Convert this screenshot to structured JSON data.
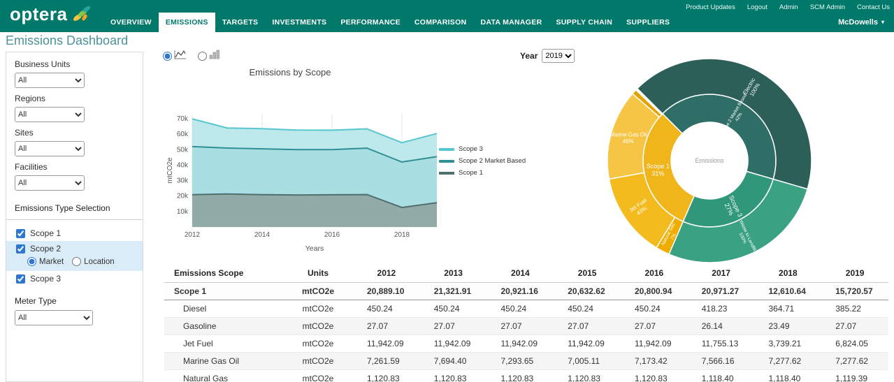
{
  "header": {
    "brand": "optera",
    "brand_color": "#00796b",
    "utility_links": [
      "Product Updates",
      "Logout",
      "Admin",
      "SCM Admin",
      "Contact Us"
    ],
    "nav": [
      "OVERVIEW",
      "EMISSIONS",
      "TARGETS",
      "INVESTMENTS",
      "PERFORMANCE",
      "COMPARISON",
      "DATA MANAGER",
      "SUPPLY CHAIN",
      "SUPPLIERS"
    ],
    "active_nav": "EMISSIONS",
    "user": "McDowells"
  },
  "page_title": "Emissions Dashboard",
  "sidebar": {
    "filters": [
      {
        "label": "Business Units",
        "value": "All"
      },
      {
        "label": "Regions",
        "value": "All"
      },
      {
        "label": "Sites",
        "value": "All"
      },
      {
        "label": "Facilities",
        "value": "All"
      }
    ],
    "section_title": "Emissions Type Selection",
    "scope1": {
      "label": "Scope 1",
      "checked": true
    },
    "scope2": {
      "label": "Scope 2",
      "checked": true,
      "options": [
        "Market",
        "Location"
      ],
      "selected": "Market"
    },
    "scope3": {
      "label": "Scope 3",
      "checked": true
    },
    "meter_type": {
      "label": "Meter Type",
      "value": "All"
    }
  },
  "controls": {
    "chart_type_options": [
      {
        "icon": "line-chart-icon",
        "selected": true
      },
      {
        "icon": "bar-chart-icon",
        "selected": false
      }
    ],
    "year_label": "Year",
    "year_value": "2019"
  },
  "chart_data": [
    {
      "type": "area",
      "title": "Emissions by Scope",
      "xlabel": "Years",
      "ylabel": "mtCO2e",
      "x": [
        2012,
        2013,
        2014,
        2015,
        2016,
        2017,
        2018,
        2019
      ],
      "x_ticks": [
        2012,
        2014,
        2016,
        2018
      ],
      "y_ticks": [
        "10k",
        "20k",
        "30k",
        "40k",
        "50k",
        "60k",
        "70k"
      ],
      "ylim": [
        0,
        72000
      ],
      "stacked": true,
      "grid": "vertical",
      "legend_position": "right",
      "series": [
        {
          "name": "Scope 1",
          "values": [
            20889,
            21322,
            20921,
            20633,
            20801,
            20971,
            12611,
            15721
          ],
          "fill": "#93aba8",
          "stroke": "#4f6e6e"
        },
        {
          "name": "Scope 2 Market Based",
          "values": [
            31100,
            29700,
            29600,
            29400,
            29200,
            30000,
            29400,
            29800
          ],
          "fill": "#a9dfe2",
          "stroke": "#2e8f94"
        },
        {
          "name": "Scope 3",
          "values": [
            17900,
            13000,
            13000,
            12600,
            12600,
            12500,
            12500,
            14900
          ],
          "fill": "#bde9ec",
          "stroke": "#57c5cd"
        }
      ],
      "legend_order": [
        "Scope 3",
        "Scope 2 Market Based",
        "Scope 1"
      ]
    },
    {
      "type": "pie",
      "subtype": "sunburst",
      "center_label": "Emissions",
      "start_angle": -45,
      "inner_ring": [
        {
          "name": "Scope 2 Market Based",
          "pct": 42,
          "color": "#2f6e66",
          "label": [
            "Scope 2 Market Based",
            "42%"
          ],
          "label_mode": "r",
          "font": 6.5
        },
        {
          "name": "Scope 3",
          "pct": 27,
          "color": "#31977a",
          "label": [
            "Scope 3",
            "27%"
          ],
          "label_mode": "r",
          "font": 9
        },
        {
          "name": "Scope 1",
          "pct": 31,
          "color": "#f1b51c",
          "label": [
            "Scope 1",
            "31%"
          ],
          "label_mode": "h",
          "font": 9
        }
      ],
      "outer_ring": [
        {
          "name": "Electric",
          "span": 42,
          "color": "#2b5f57",
          "label": [
            "Electric",
            "100%"
          ],
          "label_mode": "r",
          "font": 8
        },
        {
          "name": "Waste to Landfill",
          "span": 27,
          "color": "#3aa183",
          "label": [
            "Waste to Landfill",
            "100%"
          ],
          "label_mode": "r",
          "font": 6.5
        },
        {
          "name": "Natural Gas",
          "span": 2.2,
          "color": "#eead00",
          "label": [
            "Natural Gas",
            "7%"
          ],
          "label_mode": "r",
          "font": 6.5
        },
        {
          "name": "Jet Fuel",
          "span": 13.4,
          "color": "#f3bb1e",
          "label": [
            "Jet Fuel",
            "43%"
          ],
          "label_mode": "r",
          "font": 8
        },
        {
          "name": "Marine Gas Oil",
          "span": 14.3,
          "color": "#f6c546",
          "label": [
            "Marine Gas Oil",
            "46%"
          ],
          "label_mode": "h",
          "font": 8
        },
        {
          "name": "Diesel",
          "span": 0.8,
          "color": "#e3a303",
          "label": null
        },
        {
          "name": "Gasoline",
          "span": 0.1,
          "color": "#f0c050",
          "label": null
        }
      ]
    }
  ],
  "table": {
    "headers": [
      "Emissions Scope",
      "Units",
      "2012",
      "2013",
      "2014",
      "2015",
      "2016",
      "2017",
      "2018",
      "2019"
    ],
    "rows": [
      {
        "label": "Scope 1",
        "units": "mtCO2e",
        "bold": true,
        "values": [
          "20,889.10",
          "21,321.91",
          "20,921.16",
          "20,632.62",
          "20,800.94",
          "20,971.27",
          "12,610.64",
          "15,720.57"
        ]
      },
      {
        "label": "Diesel",
        "units": "mtCO2e",
        "bold": false,
        "values": [
          "450.24",
          "450.24",
          "450.24",
          "450.24",
          "450.24",
          "418.23",
          "364.71",
          "385.22"
        ]
      },
      {
        "label": "Gasoline",
        "units": "mtCO2e",
        "bold": false,
        "values": [
          "27.07",
          "27.07",
          "27.07",
          "27.07",
          "27.07",
          "26.14",
          "23.49",
          "27.07"
        ]
      },
      {
        "label": "Jet Fuel",
        "units": "mtCO2e",
        "bold": false,
        "values": [
          "11,942.09",
          "11,942.09",
          "11,942.09",
          "11,942.09",
          "11,942.09",
          "11,755.13",
          "3,739.21",
          "6,824.05"
        ]
      },
      {
        "label": "Marine Gas Oil",
        "units": "mtCO2e",
        "bold": false,
        "values": [
          "7,261.59",
          "7,694.40",
          "7,293.65",
          "7,005.11",
          "7,173.42",
          "7,566.16",
          "7,277.62",
          "7,277.62"
        ]
      },
      {
        "label": "Natural Gas",
        "units": "mtCO2e",
        "bold": false,
        "values": [
          "1,120.83",
          "1,120.83",
          "1,120.83",
          "1,120.83",
          "1,120.83",
          "1,118.40",
          "1,118.40",
          "1,119.39"
        ]
      }
    ]
  }
}
